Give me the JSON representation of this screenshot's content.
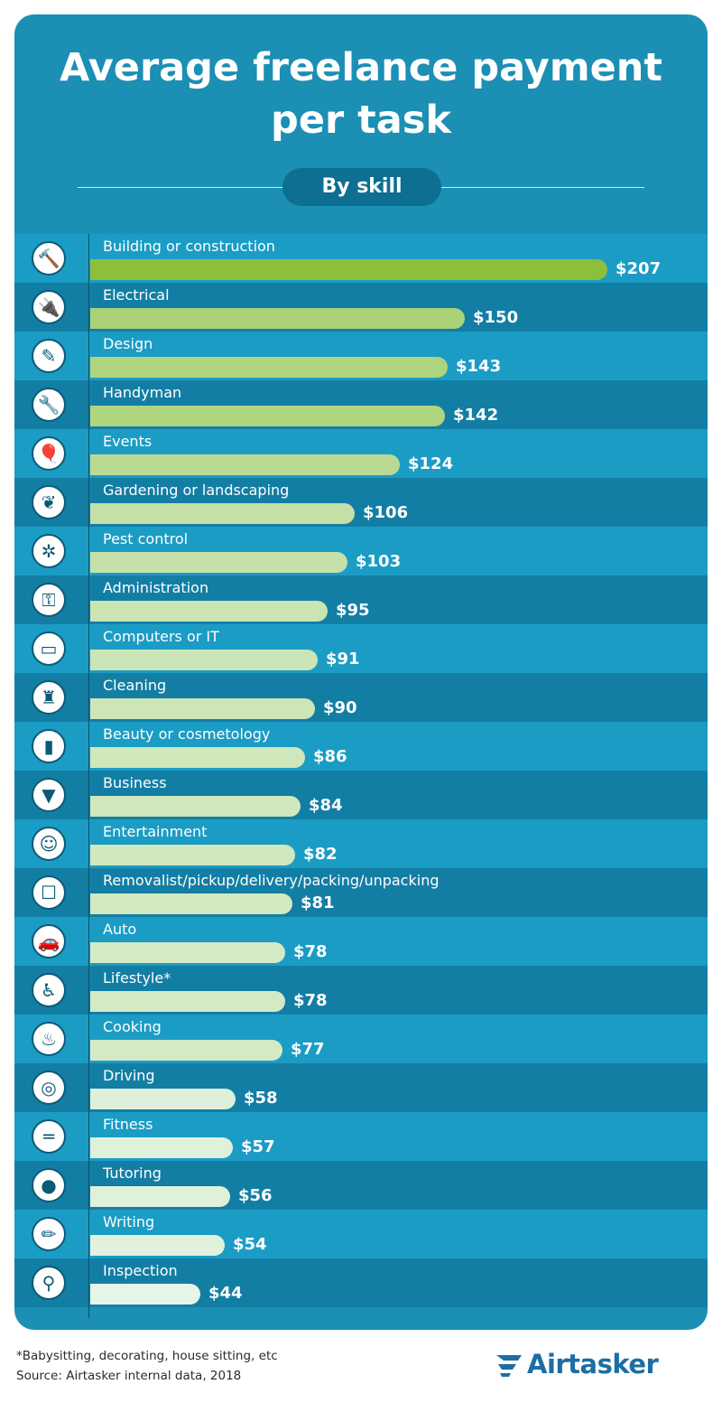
{
  "title_line1": "Average freelance payment",
  "title_line2": "per task",
  "subtitle": "By skill",
  "footnote_line1": "*Babysitting, decorating, house sitting, etc",
  "footnote_line2": "Source: Airtasker internal data, 2018",
  "brand": "Airtasker",
  "colors": {
    "background": "#1b8fb4",
    "bar_top": "#8cbf3a",
    "bar_light": "#e6f5e8",
    "text": "#ffffff"
  },
  "chart_data": {
    "type": "bar",
    "orientation": "horizontal",
    "value_prefix": "$",
    "title": "Average freelance payment per task",
    "subtitle": "By skill",
    "xlim": [
      0,
      207
    ],
    "categories": [
      "Building or construction",
      "Electrical",
      "Design",
      "Handyman",
      "Events",
      "Gardening or landscaping",
      "Pest control",
      "Administration",
      "Computers or IT",
      "Cleaning",
      "Beauty or cosmetology",
      "Business",
      "Entertainment",
      "Removalist/pickup/delivery/packing/unpacking",
      "Auto",
      "Lifestyle*",
      "Cooking",
      "Driving",
      "Fitness",
      "Tutoring",
      "Writing",
      "Inspection"
    ],
    "values": [
      207,
      150,
      143,
      142,
      124,
      106,
      103,
      95,
      91,
      90,
      86,
      84,
      82,
      81,
      78,
      78,
      77,
      58,
      57,
      56,
      54,
      44
    ],
    "value_labels": [
      "$207",
      "$150",
      "$143",
      "$142",
      "$124",
      "$106",
      "$103",
      "$95",
      "$91",
      "$90",
      "$86",
      "$84",
      "$82",
      "$81",
      "$78",
      "$78",
      "$77",
      "$58",
      "$57",
      "$56",
      "$54",
      "$44"
    ],
    "icons": [
      "hammer-icon",
      "plug-icon",
      "design-tools-icon",
      "wrench-icon",
      "balloons-icon",
      "leaf-icon",
      "bug-icon",
      "key-icon",
      "computer-icon",
      "spray-bottle-icon",
      "lipstick-icon",
      "tie-icon",
      "theater-masks-icon",
      "box-icon",
      "car-icon",
      "pram-icon",
      "cooking-pot-icon",
      "steering-wheel-icon",
      "dumbbell-icon",
      "apple-icon",
      "pencil-icon",
      "magnifying-glass-icon"
    ]
  }
}
